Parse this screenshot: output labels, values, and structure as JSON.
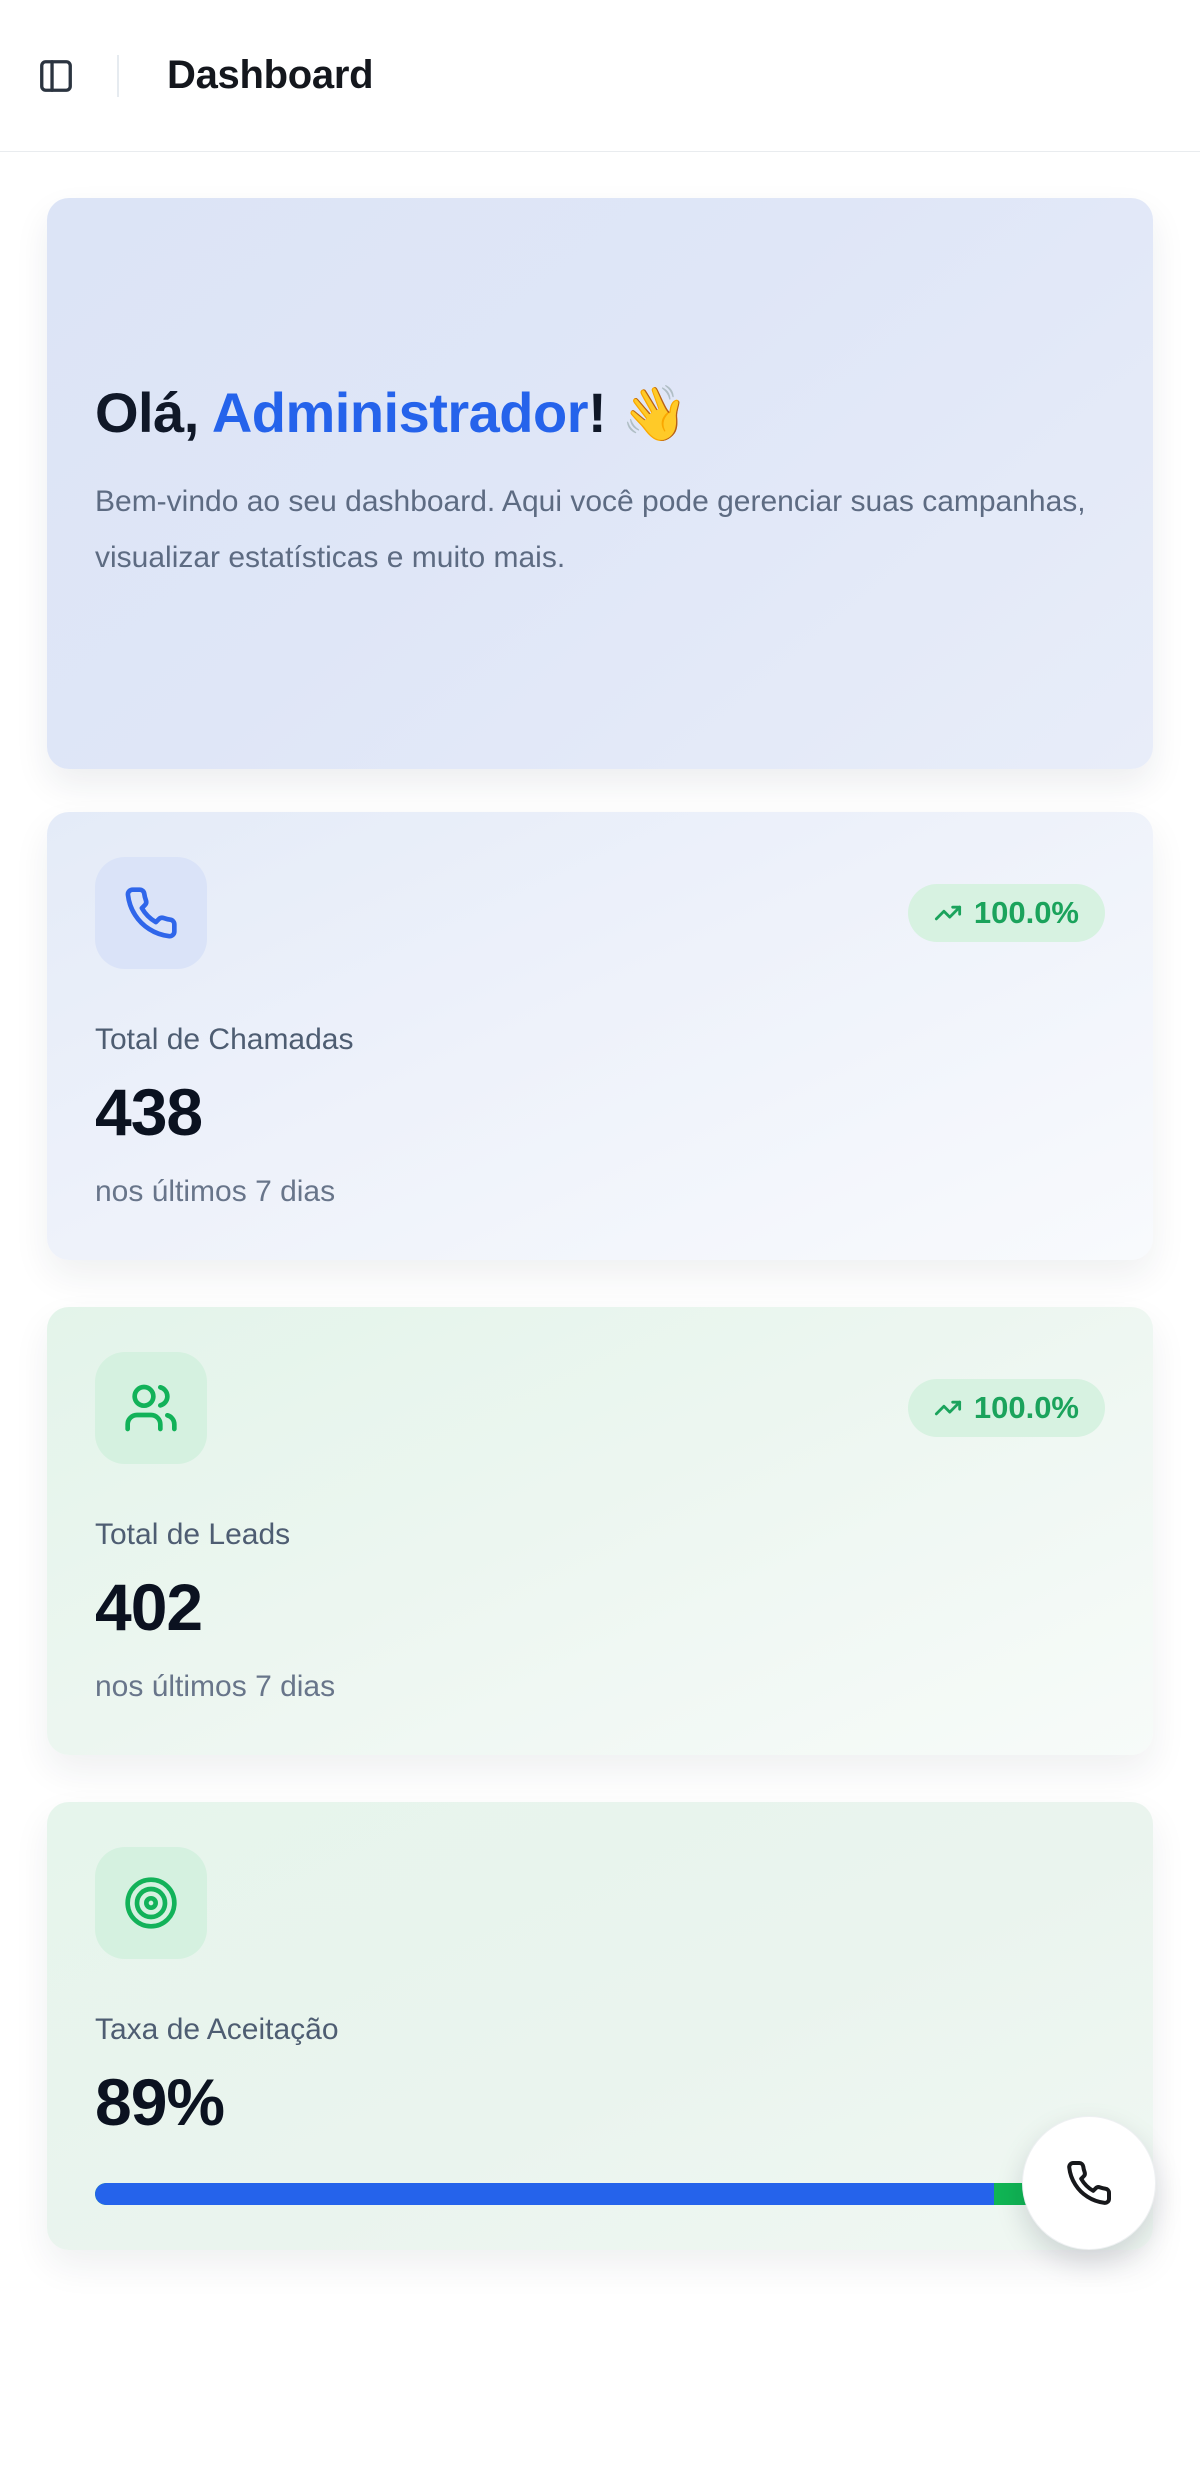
{
  "header": {
    "title": "Dashboard"
  },
  "welcome": {
    "greeting_prefix": "Olá, ",
    "greeting_name": "Administrador",
    "greeting_suffix": "!",
    "wave_emoji": "👋",
    "description": "Bem-vindo ao seu dashboard. Aqui você pode gerenciar suas campanhas, visualizar estatísticas e muito mais."
  },
  "stats": [
    {
      "icon": "phone-icon",
      "badge": "100.0%",
      "label": "Total de Chamadas",
      "value": "438",
      "sublabel": "nos últimos 7 dias"
    },
    {
      "icon": "users-icon",
      "badge": "100.0%",
      "label": "Total de Leads",
      "value": "402",
      "sublabel": "nos últimos 7 dias"
    },
    {
      "icon": "target-icon",
      "label": "Taxa de Aceitação",
      "value": "89%",
      "progress_percent": 89
    }
  ],
  "colors": {
    "accent_blue": "#2563eb",
    "accent_green": "#16a34a",
    "badge_bg": "#d7f2e1",
    "badge_text": "#1ba35c",
    "progress_fill": "#2563eb",
    "progress_track": "#10b554"
  }
}
